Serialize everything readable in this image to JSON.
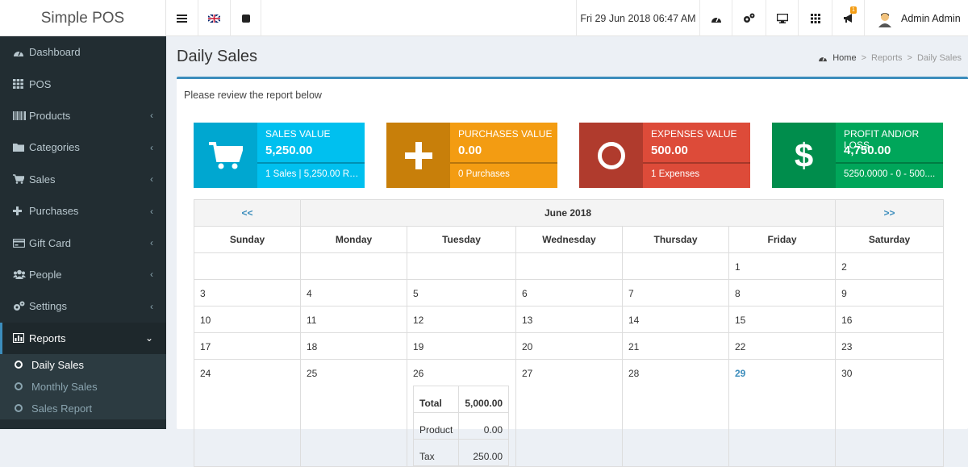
{
  "app": {
    "title": "Simple POS"
  },
  "topbar": {
    "datetime": "Fri 29 Jun 2018 06:47 AM",
    "notif_count": "1",
    "user": "Admin Admin"
  },
  "sidebar": {
    "items": [
      {
        "label": "Dashboard",
        "icon": "dashboard-icon"
      },
      {
        "label": "POS",
        "icon": "grid-icon"
      },
      {
        "label": "Products",
        "icon": "barcode-icon"
      },
      {
        "label": "Categories",
        "icon": "folder-icon"
      },
      {
        "label": "Sales",
        "icon": "cart-icon"
      },
      {
        "label": "Purchases",
        "icon": "plus-icon"
      },
      {
        "label": "Gift Card",
        "icon": "credit-card-icon"
      },
      {
        "label": "People",
        "icon": "users-icon"
      },
      {
        "label": "Settings",
        "icon": "cogs-icon"
      },
      {
        "label": "Reports",
        "icon": "bar-chart-icon"
      }
    ],
    "sub": [
      "Daily Sales",
      "Monthly Sales",
      "Sales Report"
    ]
  },
  "page": {
    "title": "Daily Sales",
    "breadcrumb": {
      "home": "Home",
      "reports": "Reports",
      "current": "Daily Sales"
    },
    "lead": "Please review the report below"
  },
  "stats": [
    {
      "label": "Sales Value",
      "value": "5,250.00",
      "foot": "1 Sales | 5,250.00 Re...",
      "color": "#00c0ef",
      "icon": "cart-icon"
    },
    {
      "label": "Purchases Value",
      "value": "0.00",
      "foot": "0 Purchases",
      "color": "#f39c12",
      "icon": "plus-icon"
    },
    {
      "label": "Expenses Value",
      "value": "500.00",
      "foot": "1 Expenses",
      "color": "#dd4b39",
      "icon": "circle-icon"
    },
    {
      "label": "Profit and/or Loss",
      "value": "4,750.00",
      "foot": "5250.0000 - 0 - 500....",
      "color": "#00a65a",
      "icon": "dollar-icon"
    }
  ],
  "calendar": {
    "prev": "<<",
    "next": ">>",
    "month": "June 2018",
    "days": [
      "Sunday",
      "Monday",
      "Tuesday",
      "Wednesday",
      "Thursday",
      "Friday",
      "Saturday"
    ],
    "weeks": [
      [
        "",
        "",
        "",
        "",
        "",
        "1",
        "2"
      ],
      [
        "3",
        "4",
        "5",
        "6",
        "7",
        "8",
        "9"
      ],
      [
        "10",
        "11",
        "12",
        "13",
        "14",
        "15",
        "16"
      ],
      [
        "17",
        "18",
        "19",
        "20",
        "21",
        "22",
        "23"
      ],
      [
        "24",
        "25",
        "26",
        "27",
        "28",
        "29",
        "30"
      ]
    ],
    "detail": {
      "total_label": "Total",
      "total_value": "5,000.00",
      "product_label": "Product",
      "product_value": "0.00",
      "tax_label": "Tax",
      "tax_value": "250.00"
    }
  }
}
